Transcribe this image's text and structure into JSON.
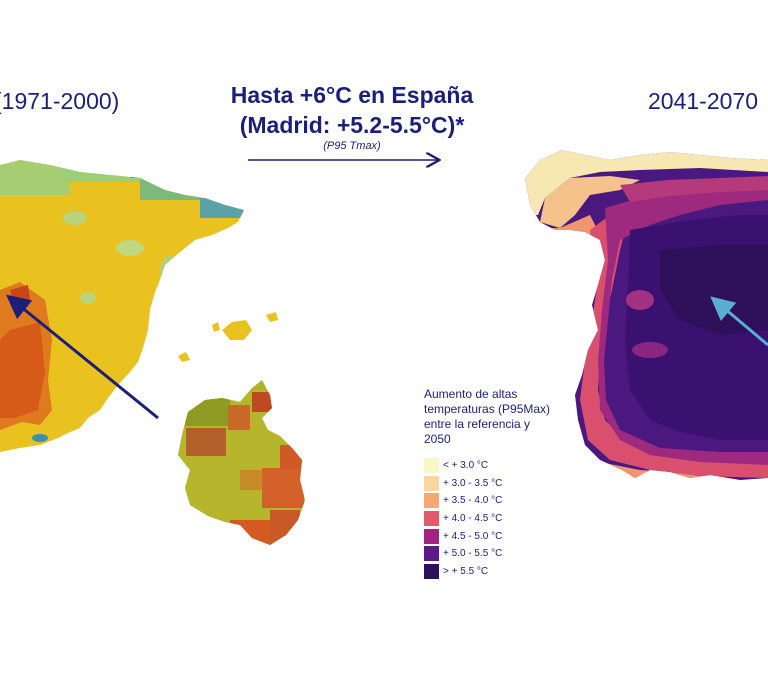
{
  "headline": {
    "line1": "Hasta +6°C en España",
    "line2": "(Madrid: +5.2-5.5°C)*",
    "subnote": "(P95 Tmax)"
  },
  "periods": {
    "left": "(1971-2000)",
    "right": "2041-2070"
  },
  "legend": {
    "title": "Aumento de altas temperaturas (P95Max) entre la referencia y 2050",
    "items": [
      {
        "label": "< + 3.0 °C",
        "color": "#fbf7c4"
      },
      {
        "label": "+ 3.0 - 3.5 °C",
        "color": "#fad7a0"
      },
      {
        "label": "+ 3.5 - 4.0 °C",
        "color": "#f5a870"
      },
      {
        "label": "+ 4.0 - 4.5 °C",
        "color": "#e45a6a"
      },
      {
        "label": "+ 4.5 - 5.0 °C",
        "color": "#a3237f"
      },
      {
        "label": "+ 5.0 - 5.5 °C",
        "color": "#5c1a86"
      },
      {
        "label": "> + 5.5 °C",
        "color": "#2d0f5a"
      }
    ]
  },
  "colors": {
    "text": "#1b1f7a",
    "arrow_dark": "#1b1f7a",
    "arrow_light": "#5aaed0"
  }
}
